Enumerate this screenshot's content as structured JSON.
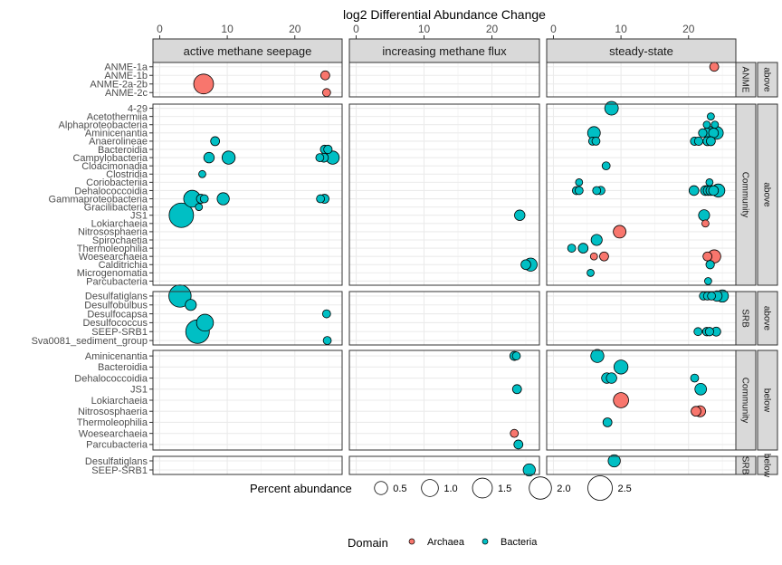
{
  "chart_data": {
    "type": "scatter",
    "title": "",
    "xlabel": "log2 Differential Abundance Change",
    "ylabel": "",
    "xlim": [
      -1,
      27
    ],
    "x_ticks": [
      0,
      10,
      20
    ],
    "grid": true,
    "legend_position": "bottom",
    "column_facets": [
      "active methane seepage",
      "increasing methane flux",
      "steady-state"
    ],
    "row_facets": [
      {
        "group": "ANME",
        "position": "above",
        "taxa": [
          "ANME-1a",
          "ANME-1b",
          "ANME-2a-2b",
          "ANME-2c"
        ]
      },
      {
        "group": "Community",
        "position": "above",
        "taxa": [
          "4-29",
          "Acetothermiia",
          "Alphaproteobacteria",
          "Aminicenantia",
          "Anaerolineae",
          "Bacteroidia",
          "Campylobacteria",
          "Cloacimonadia",
          "Clostridia",
          "Coriobacteriia",
          "Dehalococcoidia",
          "Gammaproteobacteria",
          "Gracilibacteria",
          "JS1",
          "Lokiarchaeia",
          "Nitrososphaeria",
          "Spirochaetia",
          "Thermoleophilia",
          "Woesearchaeia",
          "Calditrichia",
          "Microgenomatia",
          "Parcubacteria"
        ]
      },
      {
        "group": "SRB",
        "position": "above",
        "taxa": [
          "Desulfatiglans",
          "Desulfobulbus",
          "Desulfocapsa",
          "Desulfococcus",
          "SEEP-SRB1",
          "Sva0081_sediment_group"
        ]
      },
      {
        "group": "Community",
        "position": "below",
        "taxa": [
          "Aminicenantia",
          "Bacteroidia",
          "Dehalococcoidia",
          "JS1",
          "Lokiarchaeia",
          "Nitrososphaeria",
          "Thermoleophilia",
          "Woesearchaeia",
          "Parcubacteria"
        ]
      },
      {
        "group": "SRB",
        "position": "below",
        "taxa": [
          "Desulfatiglans",
          "SEEP-SRB1"
        ]
      }
    ],
    "size_legend": {
      "title": "Percent abundance",
      "values": [
        0.5,
        1.0,
        1.5,
        2.0,
        2.5
      ],
      "labels": [
        "0.5",
        "1.0",
        "1.5",
        "2.0",
        "2.5"
      ]
    },
    "color_legend": {
      "title": "Domain",
      "entries": [
        {
          "name": "Archaea",
          "color": "#F8766D"
        },
        {
          "name": "Bacteria",
          "color": "#00BFC4"
        }
      ]
    },
    "colors": {
      "Archaea": "#F8766D",
      "Bacteria": "#00BFC4"
    },
    "points": [
      {
        "col": 0,
        "row": 0,
        "taxon": "ANME-1b",
        "x": 24.5,
        "size": 0.15,
        "domain": "Archaea"
      },
      {
        "col": 0,
        "row": 0,
        "taxon": "ANME-2a-2b",
        "x": 6.5,
        "size": 1.5,
        "domain": "Archaea"
      },
      {
        "col": 0,
        "row": 0,
        "taxon": "ANME-2c",
        "x": 24.7,
        "size": 0.1,
        "domain": "Archaea"
      },
      {
        "col": 2,
        "row": 0,
        "taxon": "ANME-1a",
        "x": 23.8,
        "size": 0.15,
        "domain": "Archaea"
      },
      {
        "col": 0,
        "row": 1,
        "taxon": "Anaerolineae",
        "x": 8.2,
        "size": 0.15,
        "domain": "Bacteria"
      },
      {
        "col": 0,
        "row": 1,
        "taxon": "Bacteroidia",
        "x": 24.4,
        "size": 0.12,
        "domain": "Bacteria"
      },
      {
        "col": 0,
        "row": 1,
        "taxon": "Bacteroidia",
        "x": 24.9,
        "size": 0.12,
        "domain": "Bacteria"
      },
      {
        "col": 0,
        "row": 1,
        "taxon": "Campylobacteria",
        "x": 7.3,
        "size": 0.25,
        "domain": "Bacteria"
      },
      {
        "col": 0,
        "row": 1,
        "taxon": "Campylobacteria",
        "x": 10.2,
        "size": 0.5,
        "domain": "Bacteria"
      },
      {
        "col": 0,
        "row": 1,
        "taxon": "Campylobacteria",
        "x": 23.7,
        "size": 0.1,
        "domain": "Bacteria"
      },
      {
        "col": 0,
        "row": 1,
        "taxon": "Campylobacteria",
        "x": 24.3,
        "size": 0.15,
        "domain": "Bacteria"
      },
      {
        "col": 0,
        "row": 1,
        "taxon": "Campylobacteria",
        "x": 25.6,
        "size": 0.5,
        "domain": "Bacteria"
      },
      {
        "col": 0,
        "row": 1,
        "taxon": "Clostridia",
        "x": 6.3,
        "size": 0.06,
        "domain": "Bacteria"
      },
      {
        "col": 0,
        "row": 1,
        "taxon": "Gammaproteobacteria",
        "x": 4.8,
        "size": 1.0,
        "domain": "Bacteria"
      },
      {
        "col": 0,
        "row": 1,
        "taxon": "Gammaproteobacteria",
        "x": 6.1,
        "size": 0.15,
        "domain": "Bacteria"
      },
      {
        "col": 0,
        "row": 1,
        "taxon": "Gammaproteobacteria",
        "x": 6.6,
        "size": 0.1,
        "domain": "Bacteria"
      },
      {
        "col": 0,
        "row": 1,
        "taxon": "Gammaproteobacteria",
        "x": 9.4,
        "size": 0.4,
        "domain": "Bacteria"
      },
      {
        "col": 0,
        "row": 1,
        "taxon": "Gammaproteobacteria",
        "x": 23.8,
        "size": 0.1,
        "domain": "Bacteria"
      },
      {
        "col": 0,
        "row": 1,
        "taxon": "Gammaproteobacteria",
        "x": 24.4,
        "size": 0.15,
        "domain": "Bacteria"
      },
      {
        "col": 0,
        "row": 1,
        "taxon": "Gracilibacteria",
        "x": 5.8,
        "size": 0.06,
        "domain": "Bacteria"
      },
      {
        "col": 0,
        "row": 1,
        "taxon": "JS1",
        "x": 3.2,
        "size": 2.5,
        "domain": "Bacteria"
      },
      {
        "col": 1,
        "row": 1,
        "taxon": "JS1",
        "x": 24.1,
        "size": 0.25,
        "domain": "Bacteria"
      },
      {
        "col": 1,
        "row": 1,
        "taxon": "Calditrichia",
        "x": 25.0,
        "size": 0.2,
        "domain": "Bacteria"
      },
      {
        "col": 1,
        "row": 1,
        "taxon": "Calditrichia",
        "x": 25.7,
        "size": 0.5,
        "domain": "Bacteria"
      },
      {
        "col": 2,
        "row": 1,
        "taxon": "4-29",
        "x": 8.6,
        "size": 0.55,
        "domain": "Bacteria"
      },
      {
        "col": 2,
        "row": 1,
        "taxon": "Acetothermiia",
        "x": 23.3,
        "size": 0.06,
        "domain": "Bacteria"
      },
      {
        "col": 2,
        "row": 1,
        "taxon": "Alphaproteobacteria",
        "x": 22.7,
        "size": 0.06,
        "domain": "Bacteria"
      },
      {
        "col": 2,
        "row": 1,
        "taxon": "Alphaproteobacteria",
        "x": 23.9,
        "size": 0.06,
        "domain": "Bacteria"
      },
      {
        "col": 2,
        "row": 1,
        "taxon": "Aminicenantia",
        "x": 6.0,
        "size": 0.45,
        "domain": "Bacteria"
      },
      {
        "col": 2,
        "row": 1,
        "taxon": "Aminicenantia",
        "x": 22.1,
        "size": 0.12,
        "domain": "Bacteria"
      },
      {
        "col": 2,
        "row": 1,
        "taxon": "Aminicenantia",
        "x": 22.7,
        "size": 0.2,
        "domain": "Bacteria"
      },
      {
        "col": 2,
        "row": 1,
        "taxon": "Aminicenantia",
        "x": 23.2,
        "size": 0.45,
        "domain": "Bacteria"
      },
      {
        "col": 2,
        "row": 1,
        "taxon": "Aminicenantia",
        "x": 23.7,
        "size": 0.2,
        "domain": "Bacteria"
      },
      {
        "col": 2,
        "row": 1,
        "taxon": "Aminicenantia",
        "x": 24.2,
        "size": 0.45,
        "domain": "Bacteria"
      },
      {
        "col": 2,
        "row": 1,
        "taxon": "Anaerolineae",
        "x": 5.8,
        "size": 0.1,
        "domain": "Bacteria"
      },
      {
        "col": 2,
        "row": 1,
        "taxon": "Anaerolineae",
        "x": 6.3,
        "size": 0.1,
        "domain": "Bacteria"
      },
      {
        "col": 2,
        "row": 1,
        "taxon": "Anaerolineae",
        "x": 20.9,
        "size": 0.12,
        "domain": "Bacteria"
      },
      {
        "col": 2,
        "row": 1,
        "taxon": "Anaerolineae",
        "x": 21.5,
        "size": 0.12,
        "domain": "Bacteria"
      },
      {
        "col": 2,
        "row": 1,
        "taxon": "Anaerolineae",
        "x": 22.8,
        "size": 0.15,
        "domain": "Bacteria"
      },
      {
        "col": 2,
        "row": 1,
        "taxon": "Anaerolineae",
        "x": 23.3,
        "size": 0.15,
        "domain": "Bacteria"
      },
      {
        "col": 2,
        "row": 1,
        "taxon": "Cloacimonadia",
        "x": 7.8,
        "size": 0.1,
        "domain": "Bacteria"
      },
      {
        "col": 2,
        "row": 1,
        "taxon": "Coriobacteriia",
        "x": 3.8,
        "size": 0.06,
        "domain": "Bacteria"
      },
      {
        "col": 2,
        "row": 1,
        "taxon": "Coriobacteriia",
        "x": 23.1,
        "size": 0.06,
        "domain": "Bacteria"
      },
      {
        "col": 2,
        "row": 1,
        "taxon": "Dehalococcoidia",
        "x": 3.4,
        "size": 0.1,
        "domain": "Bacteria"
      },
      {
        "col": 2,
        "row": 1,
        "taxon": "Dehalococcoidia",
        "x": 3.8,
        "size": 0.1,
        "domain": "Bacteria"
      },
      {
        "col": 2,
        "row": 1,
        "taxon": "Dehalococcoidia",
        "x": 6.4,
        "size": 0.1,
        "domain": "Bacteria"
      },
      {
        "col": 2,
        "row": 1,
        "taxon": "Dehalococcoidia",
        "x": 7.0,
        "size": 0.12,
        "domain": "Bacteria"
      },
      {
        "col": 2,
        "row": 1,
        "taxon": "Dehalococcoidia",
        "x": 20.8,
        "size": 0.2,
        "domain": "Bacteria"
      },
      {
        "col": 2,
        "row": 1,
        "taxon": "Dehalococcoidia",
        "x": 22.5,
        "size": 0.2,
        "domain": "Bacteria"
      },
      {
        "col": 2,
        "row": 1,
        "taxon": "Dehalococcoidia",
        "x": 22.9,
        "size": 0.2,
        "domain": "Bacteria"
      },
      {
        "col": 2,
        "row": 1,
        "taxon": "Dehalococcoidia",
        "x": 23.3,
        "size": 0.2,
        "domain": "Bacteria"
      },
      {
        "col": 2,
        "row": 1,
        "taxon": "Dehalococcoidia",
        "x": 23.7,
        "size": 0.2,
        "domain": "Bacteria"
      },
      {
        "col": 2,
        "row": 1,
        "taxon": "Dehalococcoidia",
        "x": 24.4,
        "size": 0.5,
        "domain": "Bacteria"
      },
      {
        "col": 2,
        "row": 1,
        "taxon": "JS1",
        "x": 22.3,
        "size": 0.3,
        "domain": "Bacteria"
      },
      {
        "col": 2,
        "row": 1,
        "taxon": "Lokiarchaeia",
        "x": 22.5,
        "size": 0.06,
        "domain": "Archaea"
      },
      {
        "col": 2,
        "row": 1,
        "taxon": "Nitrososphaeria",
        "x": 9.8,
        "size": 0.45,
        "domain": "Archaea"
      },
      {
        "col": 2,
        "row": 1,
        "taxon": "Spirochaetia",
        "x": 6.4,
        "size": 0.3,
        "domain": "Bacteria"
      },
      {
        "col": 2,
        "row": 1,
        "taxon": "Thermoleophilia",
        "x": 2.7,
        "size": 0.1,
        "domain": "Bacteria"
      },
      {
        "col": 2,
        "row": 1,
        "taxon": "Thermoleophilia",
        "x": 4.4,
        "size": 0.2,
        "domain": "Bacteria"
      },
      {
        "col": 2,
        "row": 1,
        "taxon": "Woesearchaeia",
        "x": 6.0,
        "size": 0.06,
        "domain": "Archaea"
      },
      {
        "col": 2,
        "row": 1,
        "taxon": "Woesearchaeia",
        "x": 7.5,
        "size": 0.15,
        "domain": "Archaea"
      },
      {
        "col": 2,
        "row": 1,
        "taxon": "Woesearchaeia",
        "x": 22.8,
        "size": 0.15,
        "domain": "Archaea"
      },
      {
        "col": 2,
        "row": 1,
        "taxon": "Woesearchaeia",
        "x": 23.8,
        "size": 0.5,
        "domain": "Archaea"
      },
      {
        "col": 2,
        "row": 1,
        "taxon": "Calditrichia",
        "x": 23.2,
        "size": 0.12,
        "domain": "Bacteria"
      },
      {
        "col": 2,
        "row": 1,
        "taxon": "Microgenomatia",
        "x": 5.5,
        "size": 0.06,
        "domain": "Bacteria"
      },
      {
        "col": 2,
        "row": 1,
        "taxon": "Parcubacteria",
        "x": 22.9,
        "size": 0.06,
        "domain": "Bacteria"
      },
      {
        "col": 0,
        "row": 2,
        "taxon": "Desulfatiglans",
        "x": 3.0,
        "size": 2.0,
        "domain": "Bacteria"
      },
      {
        "col": 0,
        "row": 2,
        "taxon": "Desulfobulbus",
        "x": 4.6,
        "size": 0.3,
        "domain": "Bacteria"
      },
      {
        "col": 0,
        "row": 2,
        "taxon": "Desulfocapsa",
        "x": 24.7,
        "size": 0.1,
        "domain": "Bacteria"
      },
      {
        "col": 0,
        "row": 2,
        "taxon": "Desulfococcus",
        "x": 6.7,
        "size": 1.0,
        "domain": "Bacteria"
      },
      {
        "col": 0,
        "row": 2,
        "taxon": "SEEP-SRB1",
        "x": 5.6,
        "size": 2.3,
        "domain": "Bacteria"
      },
      {
        "col": 0,
        "row": 2,
        "taxon": "Sva0081_sediment_group",
        "x": 24.8,
        "size": 0.1,
        "domain": "Bacteria"
      },
      {
        "col": 2,
        "row": 2,
        "taxon": "Desulfatiglans",
        "x": 22.2,
        "size": 0.1,
        "domain": "Bacteria"
      },
      {
        "col": 2,
        "row": 2,
        "taxon": "Desulfatiglans",
        "x": 22.8,
        "size": 0.1,
        "domain": "Bacteria"
      },
      {
        "col": 2,
        "row": 2,
        "taxon": "Desulfatiglans",
        "x": 23.4,
        "size": 0.1,
        "domain": "Bacteria"
      },
      {
        "col": 2,
        "row": 2,
        "taxon": "Desulfatiglans",
        "x": 24.2,
        "size": 0.25,
        "domain": "Bacteria"
      },
      {
        "col": 2,
        "row": 2,
        "taxon": "Desulfatiglans",
        "x": 25.0,
        "size": 0.4,
        "domain": "Bacteria"
      },
      {
        "col": 2,
        "row": 2,
        "taxon": "SEEP-SRB1",
        "x": 21.4,
        "size": 0.1,
        "domain": "Bacteria"
      },
      {
        "col": 2,
        "row": 2,
        "taxon": "SEEP-SRB1",
        "x": 22.7,
        "size": 0.12,
        "domain": "Bacteria"
      },
      {
        "col": 2,
        "row": 2,
        "taxon": "SEEP-SRB1",
        "x": 23.1,
        "size": 0.12,
        "domain": "Bacteria"
      },
      {
        "col": 2,
        "row": 2,
        "taxon": "SEEP-SRB1",
        "x": 24.1,
        "size": 0.15,
        "domain": "Bacteria"
      },
      {
        "col": 1,
        "row": 3,
        "taxon": "Aminicenantia",
        "x": 23.3,
        "size": 0.15,
        "domain": "Bacteria"
      },
      {
        "col": 1,
        "row": 3,
        "taxon": "Aminicenantia",
        "x": 23.6,
        "size": 0.1,
        "domain": "Bacteria"
      },
      {
        "col": 1,
        "row": 3,
        "taxon": "JS1",
        "x": 23.7,
        "size": 0.15,
        "domain": "Bacteria"
      },
      {
        "col": 1,
        "row": 3,
        "taxon": "Woesearchaeia",
        "x": 23.3,
        "size": 0.1,
        "domain": "Archaea"
      },
      {
        "col": 1,
        "row": 3,
        "taxon": "Parcubacteria",
        "x": 23.9,
        "size": 0.15,
        "domain": "Bacteria"
      },
      {
        "col": 2,
        "row": 3,
        "taxon": "Aminicenantia",
        "x": 6.5,
        "size": 0.5,
        "domain": "Bacteria"
      },
      {
        "col": 2,
        "row": 3,
        "taxon": "Bacteroidia",
        "x": 10.0,
        "size": 0.6,
        "domain": "Bacteria"
      },
      {
        "col": 2,
        "row": 3,
        "taxon": "Dehalococcoidia",
        "x": 7.9,
        "size": 0.25,
        "domain": "Bacteria"
      },
      {
        "col": 2,
        "row": 3,
        "taxon": "Dehalococcoidia",
        "x": 8.6,
        "size": 0.25,
        "domain": "Bacteria"
      },
      {
        "col": 2,
        "row": 3,
        "taxon": "Dehalococcoidia",
        "x": 20.9,
        "size": 0.1,
        "domain": "Bacteria"
      },
      {
        "col": 2,
        "row": 3,
        "taxon": "JS1",
        "x": 21.8,
        "size": 0.35,
        "domain": "Bacteria"
      },
      {
        "col": 2,
        "row": 3,
        "taxon": "Lokiarchaeia",
        "x": 10.0,
        "size": 0.75,
        "domain": "Archaea"
      },
      {
        "col": 2,
        "row": 3,
        "taxon": "Nitrososphaeria",
        "x": 21.1,
        "size": 0.2,
        "domain": "Archaea"
      },
      {
        "col": 2,
        "row": 3,
        "taxon": "Nitrososphaeria",
        "x": 21.7,
        "size": 0.3,
        "domain": "Archaea"
      },
      {
        "col": 2,
        "row": 3,
        "taxon": "Thermoleophilia",
        "x": 8.0,
        "size": 0.15,
        "domain": "Bacteria"
      },
      {
        "col": 1,
        "row": 4,
        "taxon": "SEEP-SRB1",
        "x": 25.5,
        "size": 0.4,
        "domain": "Bacteria"
      },
      {
        "col": 2,
        "row": 4,
        "taxon": "Desulfatiglans",
        "x": 9.0,
        "size": 0.4,
        "domain": "Bacteria"
      }
    ]
  },
  "strip_labels": {
    "group_short": {
      "SRB_below": "SRB",
      "below_short": "elow"
    }
  }
}
